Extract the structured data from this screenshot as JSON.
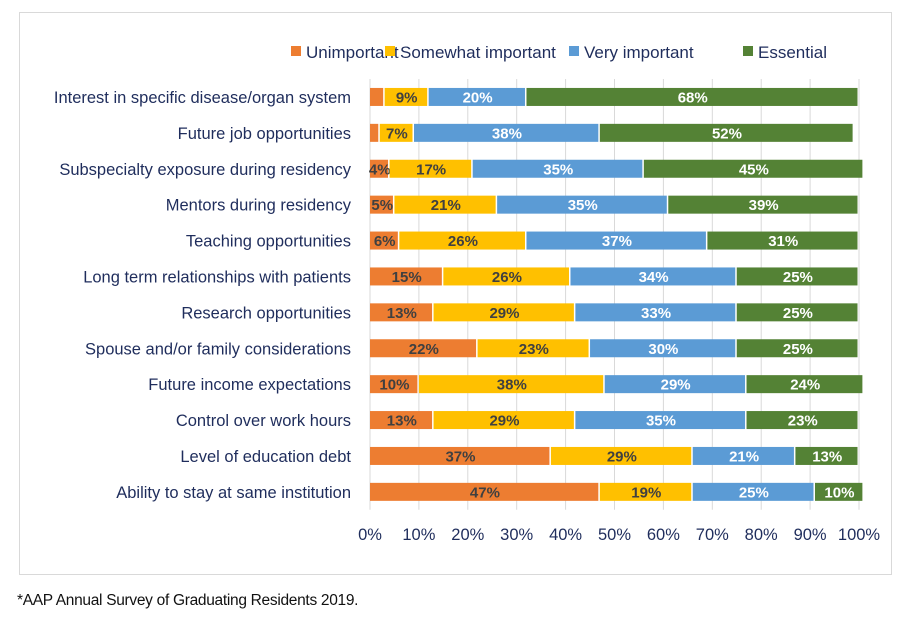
{
  "chart_data": {
    "type": "bar",
    "orientation": "horizontal",
    "stacked": true,
    "title": "",
    "xlabel": "",
    "ylabel": "",
    "xlim": [
      0,
      100
    ],
    "x_ticks": [
      "0%",
      "10%",
      "20%",
      "30%",
      "40%",
      "50%",
      "60%",
      "70%",
      "80%",
      "90%",
      "100%"
    ],
    "grid": true,
    "legend_position": "top-right",
    "categories": [
      "Interest in specific disease/organ system",
      "Future job opportunities",
      "Subspecialty exposure during residency",
      "Mentors during residency",
      "Teaching opportunities",
      "Long term relationships with patients",
      "Research opportunities",
      "Spouse and/or family considerations",
      "Future income expectations",
      "Control over work hours",
      "Level of education debt",
      "Ability to stay at same institution"
    ],
    "series": [
      {
        "name": "Unimportant",
        "color": "#ed7d31",
        "label_color": "#404040",
        "values": [
          3,
          2,
          4,
          5,
          6,
          15,
          13,
          22,
          10,
          13,
          37,
          47
        ],
        "labels": [
          "",
          "",
          "4%",
          "5%",
          "6%",
          "15%",
          "13%",
          "22%",
          "10%",
          "13%",
          "37%",
          "47%"
        ]
      },
      {
        "name": "Somewhat important",
        "color": "#ffc000",
        "label_color": "#404040",
        "values": [
          9,
          7,
          17,
          21,
          26,
          26,
          29,
          23,
          38,
          29,
          29,
          19
        ],
        "labels": [
          "9%",
          "7%",
          "17%",
          "21%",
          "26%",
          "26%",
          "29%",
          "23%",
          "38%",
          "29%",
          "29%",
          "19%"
        ]
      },
      {
        "name": "Very important",
        "color": "#5b9bd5",
        "label_color": "#ffffff",
        "values": [
          20,
          38,
          35,
          35,
          37,
          34,
          33,
          30,
          29,
          35,
          21,
          25
        ],
        "labels": [
          "20%",
          "38%",
          "35%",
          "35%",
          "37%",
          "34%",
          "33%",
          "30%",
          "29%",
          "35%",
          "21%",
          "25%"
        ]
      },
      {
        "name": "Essential",
        "color": "#548235",
        "label_color": "#ffffff",
        "values": [
          68,
          52,
          45,
          39,
          31,
          25,
          25,
          25,
          24,
          23,
          13,
          10
        ],
        "labels": [
          "68%",
          "52%",
          "45%",
          "39%",
          "31%",
          "25%",
          "25%",
          "25%",
          "24%",
          "23%",
          "13%",
          "10%"
        ]
      }
    ]
  },
  "footnote": "*AAP Annual Survey of Graduating Residents 2019."
}
